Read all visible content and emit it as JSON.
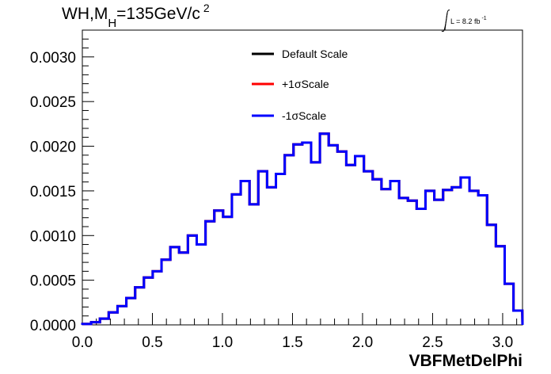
{
  "header": {
    "title_main": "WH,M",
    "title_sub": "H",
    "title_rest": "=135GeV/c",
    "title_sup": "2",
    "lumi_text": "L = 8.2 fb",
    "lumi_sup": "-1"
  },
  "chart_data": {
    "type": "line",
    "xlabel": "VBFMetDelPhi",
    "ylabel": "",
    "xlim": [
      0.0,
      3.1416
    ],
    "ylim": [
      0.0,
      0.0033
    ],
    "x_ticks": [
      "0.0",
      "0.5",
      "1.0",
      "1.5",
      "2.0",
      "2.5",
      "3.0"
    ],
    "x_tick_values": [
      0.0,
      0.5,
      1.0,
      1.5,
      2.0,
      2.5,
      3.0
    ],
    "y_ticks": [
      "0.0000",
      "0.0005",
      "0.0010",
      "0.0015",
      "0.0020",
      "0.0025",
      "0.0030"
    ],
    "y_tick_values": [
      0.0,
      0.0005,
      0.001,
      0.0015,
      0.002,
      0.0025,
      0.003
    ],
    "bin_edges_start": 0.0,
    "bin_width": 0.0628,
    "series": [
      {
        "name": "Default Scale",
        "color": "#000000",
        "values": [
          1e-05,
          3e-05,
          7e-05,
          0.00014,
          0.00021,
          0.0003,
          0.00042,
          0.00053,
          0.0006,
          0.00073,
          0.00087,
          0.00081,
          0.001,
          0.0009,
          0.00116,
          0.00128,
          0.00121,
          0.00146,
          0.00161,
          0.00135,
          0.00172,
          0.00154,
          0.00169,
          0.0019,
          0.00202,
          0.00204,
          0.00182,
          0.00214,
          0.00201,
          0.00194,
          0.00179,
          0.00189,
          0.00172,
          0.00163,
          0.00152,
          0.00161,
          0.00142,
          0.00139,
          0.0013,
          0.0015,
          0.0014,
          0.00151,
          0.00154,
          0.00165,
          0.0015,
          0.00145,
          0.00112,
          0.00088,
          0.00046,
          0.00016
        ]
      },
      {
        "name": "+1σScale",
        "color": "#ff0000",
        "values": [
          1e-05,
          3e-05,
          7e-05,
          0.00014,
          0.00021,
          0.0003,
          0.00042,
          0.00053,
          0.0006,
          0.00073,
          0.00087,
          0.00081,
          0.001,
          0.0009,
          0.00116,
          0.00128,
          0.00121,
          0.00146,
          0.00161,
          0.00135,
          0.00172,
          0.00154,
          0.00169,
          0.0019,
          0.00202,
          0.00204,
          0.00182,
          0.00214,
          0.00201,
          0.00194,
          0.00179,
          0.00189,
          0.00172,
          0.00163,
          0.00152,
          0.00161,
          0.00142,
          0.00139,
          0.0013,
          0.0015,
          0.0014,
          0.00151,
          0.00154,
          0.00165,
          0.0015,
          0.00145,
          0.00112,
          0.00088,
          0.00046,
          0.00016
        ]
      },
      {
        "name": "-1σScale",
        "color": "#0000ff",
        "values": [
          1e-05,
          3e-05,
          7e-05,
          0.00014,
          0.00021,
          0.0003,
          0.00042,
          0.00053,
          0.0006,
          0.00073,
          0.00087,
          0.00081,
          0.001,
          0.0009,
          0.00116,
          0.00128,
          0.00121,
          0.00146,
          0.00161,
          0.00135,
          0.00172,
          0.00154,
          0.00169,
          0.0019,
          0.00202,
          0.00204,
          0.00182,
          0.00214,
          0.00201,
          0.00194,
          0.00179,
          0.00189,
          0.00172,
          0.00163,
          0.00152,
          0.00161,
          0.00142,
          0.00139,
          0.0013,
          0.0015,
          0.0014,
          0.00151,
          0.00154,
          0.00165,
          0.0015,
          0.00145,
          0.00112,
          0.00088,
          0.00046,
          0.00016
        ]
      }
    ],
    "legend_position": "top-center",
    "grid": false
  }
}
